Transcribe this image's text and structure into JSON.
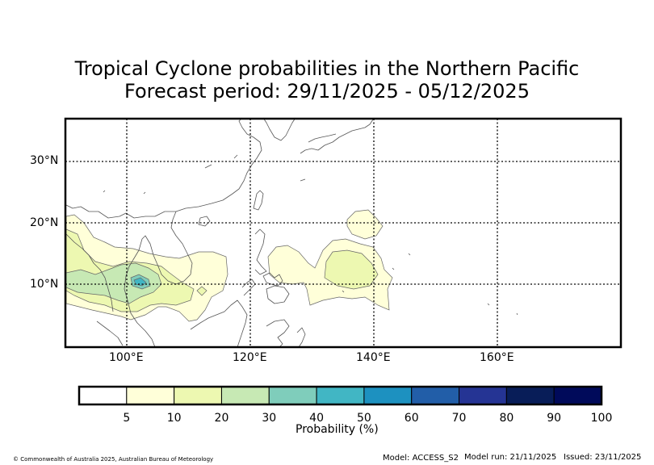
{
  "title_line1": "Tropical Cyclone probabilities in the Northern Pacific",
  "title_line2": "Forecast period: 29/11/2025 - 05/12/2025",
  "map": {
    "lon_range": [
      90,
      180
    ],
    "lat_range": [
      0,
      37
    ],
    "lon_grid": [
      100,
      120,
      140,
      160
    ],
    "lat_grid": [
      10,
      20,
      30
    ],
    "lon_tick_labels": [
      "100°E",
      "120°E",
      "140°E",
      "160°E"
    ],
    "lat_tick_labels": [
      "10°N",
      "20°N",
      "30°N"
    ],
    "coastline_color": "#555555",
    "grid_style": "dotted"
  },
  "colorbar": {
    "label": "Probability (%)",
    "tick_labels": [
      "5",
      "10",
      "20",
      "30",
      "40",
      "50",
      "60",
      "70",
      "80",
      "90",
      "100"
    ],
    "colors": [
      "#ffffff",
      "#ffffd9",
      "#edf8b1",
      "#c7e9b4",
      "#7fcdbb",
      "#41b6c4",
      "#1d91c0",
      "#225ea8",
      "#253494",
      "#081d58",
      "#000a5a"
    ]
  },
  "footer": {
    "copyright": "© Commonwealth of Australia 2025, Australian Bureau of Meteorology",
    "model": "Model: ACCESS_S2",
    "model_run": "Model run: 21/11/2025",
    "issued": "Issued: 23/11/2025"
  }
}
